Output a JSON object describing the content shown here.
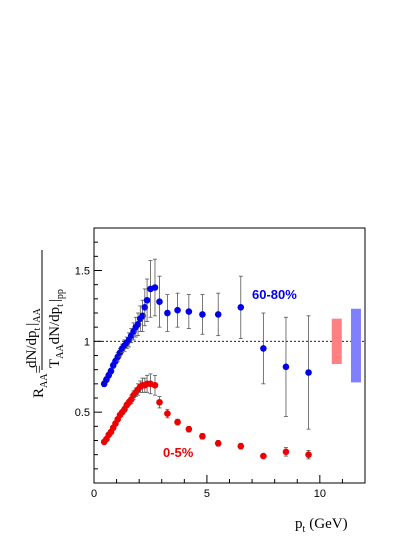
{
  "chart_data": {
    "type": "scatter",
    "xlabel_main": "p",
    "xlabel_sub": "t",
    "xlabel_unit": "(GeV)",
    "ylabel_lhs": "R",
    "ylabel_lhs_sub": "AA",
    "ylabel_num": "dN/dp",
    "ylabel_num_sub": "t",
    "ylabel_num_bar_sub": "AA",
    "ylabel_den_T": "T",
    "ylabel_den_T_sub": "AA",
    "ylabel_den_rest": "dN/dp",
    "ylabel_den_rest_sub": "t",
    "ylabel_den_bar_sub": "pp",
    "xlim": [
      0,
      12
    ],
    "ylim": [
      0,
      1.8
    ],
    "x_ticks": [
      0,
      5,
      10
    ],
    "x_tick_labels": [
      "0",
      "5",
      "10"
    ],
    "y_ticks": [
      0.5,
      1,
      1.5
    ],
    "y_tick_labels": [
      "0.5",
      "1",
      "1.5"
    ],
    "reference_line": 1.0,
    "series": [
      {
        "name": "60-80%",
        "color": "#0000ee",
        "points": [
          {
            "x": 0.45,
            "y": 0.7,
            "err": 0.02
          },
          {
            "x": 0.55,
            "y": 0.73,
            "err": 0.02
          },
          {
            "x": 0.65,
            "y": 0.76,
            "err": 0.02
          },
          {
            "x": 0.75,
            "y": 0.79,
            "err": 0.02
          },
          {
            "x": 0.85,
            "y": 0.83,
            "err": 0.02
          },
          {
            "x": 0.95,
            "y": 0.86,
            "err": 0.02
          },
          {
            "x": 1.05,
            "y": 0.89,
            "err": 0.03
          },
          {
            "x": 1.15,
            "y": 0.92,
            "err": 0.03
          },
          {
            "x": 1.25,
            "y": 0.95,
            "err": 0.03
          },
          {
            "x": 1.35,
            "y": 0.97,
            "err": 0.04
          },
          {
            "x": 1.45,
            "y": 0.99,
            "err": 0.04
          },
          {
            "x": 1.55,
            "y": 1.01,
            "err": 0.05
          },
          {
            "x": 1.65,
            "y": 1.04,
            "err": 0.05
          },
          {
            "x": 1.75,
            "y": 1.07,
            "err": 0.06
          },
          {
            "x": 1.85,
            "y": 1.1,
            "err": 0.07
          },
          {
            "x": 1.95,
            "y": 1.12,
            "err": 0.08
          },
          {
            "x": 2.05,
            "y": 1.16,
            "err": 0.09
          },
          {
            "x": 2.15,
            "y": 1.18,
            "err": 0.11
          },
          {
            "x": 2.25,
            "y": 1.24,
            "err": 0.13
          },
          {
            "x": 2.35,
            "y": 1.29,
            "err": 0.15
          },
          {
            "x": 2.5,
            "y": 1.37,
            "err": 0.2
          },
          {
            "x": 2.7,
            "y": 1.38,
            "err": 0.2
          },
          {
            "x": 2.9,
            "y": 1.28,
            "err": 0.18
          },
          {
            "x": 3.25,
            "y": 1.2,
            "err": 0.13
          },
          {
            "x": 3.7,
            "y": 1.22,
            "err": 0.12
          },
          {
            "x": 4.2,
            "y": 1.21,
            "err": 0.12
          },
          {
            "x": 4.8,
            "y": 1.19,
            "err": 0.14
          },
          {
            "x": 5.5,
            "y": 1.19,
            "err": 0.15
          },
          {
            "x": 6.5,
            "y": 1.24,
            "err": 0.22
          },
          {
            "x": 7.5,
            "y": 0.95,
            "err": 0.25
          },
          {
            "x": 8.5,
            "y": 0.82,
            "err": 0.35
          },
          {
            "x": 9.5,
            "y": 0.78,
            "err": 0.4
          }
        ],
        "syst_band": {
          "x": 11.6,
          "ymin": 0.71,
          "ymax": 1.23,
          "color": "#8080ff"
        }
      },
      {
        "name": "0-5%",
        "color": "#ee0000",
        "points": [
          {
            "x": 0.45,
            "y": 0.29,
            "err": 0.01
          },
          {
            "x": 0.55,
            "y": 0.31,
            "err": 0.01
          },
          {
            "x": 0.65,
            "y": 0.34,
            "err": 0.01
          },
          {
            "x": 0.75,
            "y": 0.36,
            "err": 0.01
          },
          {
            "x": 0.85,
            "y": 0.39,
            "err": 0.01
          },
          {
            "x": 0.95,
            "y": 0.42,
            "err": 0.01
          },
          {
            "x": 1.05,
            "y": 0.45,
            "err": 0.01
          },
          {
            "x": 1.15,
            "y": 0.48,
            "err": 0.01
          },
          {
            "x": 1.25,
            "y": 0.5,
            "err": 0.01
          },
          {
            "x": 1.35,
            "y": 0.52,
            "err": 0.02
          },
          {
            "x": 1.45,
            "y": 0.55,
            "err": 0.02
          },
          {
            "x": 1.55,
            "y": 0.57,
            "err": 0.02
          },
          {
            "x": 1.65,
            "y": 0.59,
            "err": 0.03
          },
          {
            "x": 1.75,
            "y": 0.62,
            "err": 0.03
          },
          {
            "x": 1.85,
            "y": 0.64,
            "err": 0.03
          },
          {
            "x": 1.95,
            "y": 0.66,
            "err": 0.04
          },
          {
            "x": 2.05,
            "y": 0.68,
            "err": 0.04
          },
          {
            "x": 2.15,
            "y": 0.69,
            "err": 0.05
          },
          {
            "x": 2.25,
            "y": 0.69,
            "err": 0.05
          },
          {
            "x": 2.35,
            "y": 0.7,
            "err": 0.06
          },
          {
            "x": 2.5,
            "y": 0.7,
            "err": 0.07
          },
          {
            "x": 2.7,
            "y": 0.69,
            "err": 0.07
          },
          {
            "x": 2.9,
            "y": 0.57,
            "err": 0.04
          },
          {
            "x": 3.25,
            "y": 0.49,
            "err": 0.03
          },
          {
            "x": 3.7,
            "y": 0.43,
            "err": 0.02
          },
          {
            "x": 4.2,
            "y": 0.38,
            "err": 0.02
          },
          {
            "x": 4.8,
            "y": 0.33,
            "err": 0.02
          },
          {
            "x": 5.5,
            "y": 0.28,
            "err": 0.02
          },
          {
            "x": 6.5,
            "y": 0.26,
            "err": 0.02
          },
          {
            "x": 7.5,
            "y": 0.19,
            "err": 0.01
          },
          {
            "x": 8.5,
            "y": 0.22,
            "err": 0.03
          },
          {
            "x": 9.5,
            "y": 0.2,
            "err": 0.03
          }
        ],
        "syst_band": {
          "x": 10.75,
          "ymin": 0.84,
          "ymax": 1.16,
          "color": "#ff8080"
        }
      }
    ]
  }
}
